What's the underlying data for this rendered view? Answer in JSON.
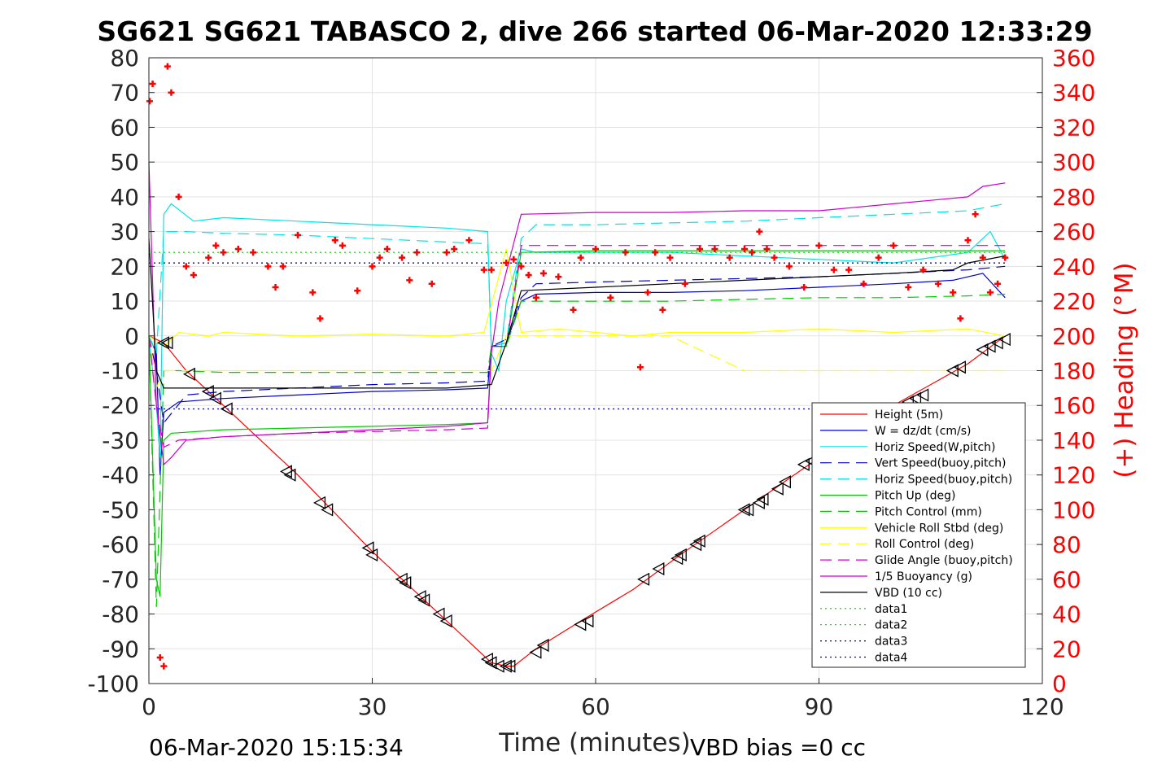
{
  "chart_data": {
    "type": "line",
    "title": "SG621 SG621 TABASCO 2, dive 266 started 06-Mar-2020 12:33:29",
    "xlabel": "Time (minutes)",
    "ylabel_right": "(+) Heading (°M)",
    "xlim": [
      0,
      120
    ],
    "ylim_left": [
      -100,
      80
    ],
    "ylim_right": [
      0,
      360
    ],
    "x_ticks": [
      "0",
      "30",
      "60",
      "90",
      "120"
    ],
    "y_ticks_left": [
      "80",
      "70",
      "60",
      "50",
      "40",
      "30",
      "20",
      "10",
      "0",
      "-10",
      "-20",
      "-30",
      "-40",
      "-50",
      "-60",
      "-70",
      "-80",
      "-90",
      "-100"
    ],
    "y_ticks_right": [
      "360",
      "340",
      "320",
      "300",
      "280",
      "260",
      "240",
      "220",
      "200",
      "180",
      "160",
      "140",
      "120",
      "100",
      "80",
      "60",
      "40",
      "20",
      "0"
    ],
    "grid": true,
    "legend_position": "bottom-right",
    "footer_left": "06-Mar-2020 15:15:34",
    "footer_right": "VBD bias =0 cc",
    "legend": [
      {
        "label": "Height (5m)",
        "color": "#ff0000",
        "dash": "solid"
      },
      {
        "label": "W = dz/dt (cm/s)",
        "color": "#0000cc",
        "dash": "solid"
      },
      {
        "label": "Horiz Speed(W,pitch)",
        "color": "#00e5e5",
        "dash": "solid"
      },
      {
        "label": "Vert Speed(buoy,pitch)",
        "color": "#0000cc",
        "dash": "dashed"
      },
      {
        "label": "Horiz Speed(buoy,pitch)",
        "color": "#00e5e5",
        "dash": "dashed"
      },
      {
        "label": "Pitch Up (deg)",
        "color": "#00cc00",
        "dash": "solid"
      },
      {
        "label": "Pitch Control (mm)",
        "color": "#00cc00",
        "dash": "dashed"
      },
      {
        "label": "Vehicle Roll Stbd (deg)",
        "color": "#ffff00",
        "dash": "solid"
      },
      {
        "label": "Roll Control (deg)",
        "color": "#ffff00",
        "dash": "dashed"
      },
      {
        "label": "Glide Angle (buoy,pitch)",
        "color": "#cc00cc",
        "dash": "dashed"
      },
      {
        "label": "1/5 Buoyancy (g)",
        "color": "#cc00cc",
        "dash": "solid"
      },
      {
        "label": "VBD (10 cc)",
        "color": "#000000",
        "dash": "solid"
      },
      {
        "label": "data1",
        "color": "#00cc00",
        "dash": "dotted"
      },
      {
        "label": "data2",
        "color": "#00cc00",
        "dash": "dotted"
      },
      {
        "label": "data3",
        "color": "#000080",
        "dash": "dotted"
      },
      {
        "label": "data4",
        "color": "#0000cc",
        "dash": "dotted"
      }
    ],
    "series": [
      {
        "key": "height",
        "x": [
          0,
          2,
          5,
          10,
          20,
          30,
          40,
          46,
          48,
          49,
          52,
          58,
          65,
          72,
          80,
          88,
          95,
          100,
          105,
          110,
          115
        ],
        "y": [
          0,
          -2,
          -10,
          -20,
          -40,
          -62,
          -82,
          -94,
          -95,
          -95,
          -90,
          -82,
          -73,
          -62,
          -50,
          -38,
          -28,
          -20,
          -14,
          -8,
          0
        ]
      },
      {
        "key": "w",
        "x": [
          0,
          1,
          1.5,
          2,
          4,
          10,
          20,
          30,
          40,
          45.5,
          46,
          48,
          50,
          52,
          60,
          70,
          80,
          90,
          100,
          108,
          112,
          115
        ],
        "y": [
          0,
          -5,
          -40,
          -22,
          -19,
          -18,
          -17,
          -16,
          -15.5,
          -15,
          -3,
          -2,
          10,
          12,
          12.5,
          12.5,
          13,
          14,
          15,
          16,
          18,
          11
        ]
      },
      {
        "key": "horiz_w",
        "x": [
          0,
          1,
          1.5,
          2,
          3,
          6,
          10,
          20,
          30,
          40,
          45.5,
          46,
          47,
          48,
          50,
          52,
          60,
          70,
          80,
          90,
          100,
          110,
          113,
          115
        ],
        "y": [
          0,
          -20,
          -35,
          35,
          38,
          33,
          34,
          33,
          32,
          31,
          30,
          -5,
          -10,
          10,
          25,
          24,
          24,
          24,
          23,
          22,
          21,
          24,
          30,
          22
        ]
      },
      {
        "key": "vert_buoy",
        "x": [
          0,
          1,
          2,
          5,
          10,
          20,
          30,
          40,
          45.5,
          46,
          48,
          50,
          52,
          60,
          70,
          80,
          90,
          100,
          110,
          115
        ],
        "y": [
          0,
          -10,
          -25,
          -17,
          -16,
          -15,
          -14,
          -13.5,
          -13,
          -3,
          -1,
          11,
          15,
          15.5,
          16,
          16.5,
          17,
          18,
          19,
          20
        ]
      },
      {
        "key": "horiz_buoy",
        "x": [
          0,
          1,
          2,
          5,
          10,
          20,
          30,
          40,
          45.5,
          46,
          48,
          50,
          52,
          60,
          70,
          80,
          90,
          100,
          110,
          115
        ],
        "y": [
          0,
          -5,
          30,
          30,
          29.5,
          29,
          28,
          27,
          26.5,
          -3,
          -2,
          28,
          32,
          32,
          32.5,
          33,
          34,
          35,
          36,
          38
        ]
      },
      {
        "key": "pitch_up",
        "x": [
          0,
          1,
          1.5,
          2,
          3,
          10,
          20,
          30,
          40,
          45.5,
          46,
          48,
          50,
          60,
          70,
          80,
          90,
          100,
          110,
          115
        ],
        "y": [
          0,
          -70,
          -75,
          -30,
          -28,
          -27,
          -26.5,
          -26,
          -25.5,
          -25,
          -3,
          -3,
          24,
          24.5,
          24.5,
          24.5,
          24.5,
          24.5,
          24.5,
          24.5
        ]
      },
      {
        "key": "pitch_ctl",
        "x": [
          0,
          1,
          2,
          4,
          10,
          20,
          30,
          40,
          45.5,
          46,
          48,
          50,
          60,
          70,
          80,
          90,
          100,
          110,
          115
        ],
        "y": [
          0,
          -78,
          -10,
          -10,
          -10.5,
          -10.5,
          -10.5,
          -10.5,
          -10.5,
          -3,
          -3,
          10,
          10,
          10,
          10.5,
          11,
          11,
          11.5,
          12
        ]
      },
      {
        "key": "roll",
        "x": [
          0,
          2,
          4,
          8,
          10,
          20,
          30,
          40,
          45,
          48,
          50,
          55,
          60,
          65,
          70,
          80,
          90,
          100,
          110,
          115
        ],
        "y": [
          0,
          -3,
          1,
          0,
          1,
          0,
          0.5,
          0,
          1,
          25,
          1,
          2,
          1,
          0,
          1,
          1,
          2,
          1,
          2,
          0
        ]
      },
      {
        "key": "roll_ctl",
        "x": [
          0,
          1,
          2,
          10,
          20,
          30,
          40,
          46,
          48,
          50,
          60,
          70,
          80,
          90,
          100,
          110,
          115
        ],
        "y": [
          0,
          -15,
          -10,
          -10,
          -10,
          -10,
          -10,
          -10,
          0,
          0,
          0,
          0,
          -10,
          -10,
          -10,
          -10,
          -10
        ]
      },
      {
        "key": "glide",
        "x": [
          0,
          1,
          2,
          4,
          10,
          20,
          30,
          40,
          45.5,
          46,
          48,
          50,
          60,
          70,
          80,
          90,
          100,
          110,
          115
        ],
        "y": [
          0,
          -20,
          -32,
          -30,
          -29,
          -28,
          -27.5,
          -27,
          -26.5,
          -3,
          -3,
          26,
          26,
          26,
          26,
          26,
          26,
          26,
          26
        ]
      },
      {
        "key": "buoyancy",
        "x": [
          0,
          1,
          2,
          3,
          5,
          10,
          20,
          30,
          40,
          45.5,
          46,
          47,
          50,
          60,
          70,
          80,
          90,
          95,
          100,
          105,
          110,
          112,
          115
        ],
        "y": [
          50,
          -20,
          -37,
          -35,
          -30,
          -29,
          -28,
          -27,
          -26,
          -25,
          -5,
          10,
          35,
          35.5,
          35.5,
          36,
          36,
          37,
          38,
          39,
          40,
          43,
          44
        ]
      },
      {
        "key": "vbd",
        "x": [
          0,
          1,
          2,
          5,
          10,
          20,
          30,
          40,
          46,
          48,
          50,
          60,
          70,
          80,
          90,
          100,
          108,
          110,
          115
        ],
        "y": [
          28,
          -10,
          -15,
          -15,
          -15,
          -15,
          -15,
          -15,
          -14,
          -2,
          13,
          14,
          15,
          16,
          17,
          18,
          19,
          21,
          23
        ]
      },
      {
        "key": "data1",
        "x": [
          0,
          115
        ],
        "y": [
          24,
          24
        ]
      },
      {
        "key": "data2",
        "x": [
          0,
          115
        ],
        "y": [
          21,
          21
        ]
      },
      {
        "key": "data3",
        "x": [
          0,
          115
        ],
        "y": [
          21,
          21
        ]
      },
      {
        "key": "data4",
        "x": [
          0,
          115
        ],
        "y": [
          -21,
          -21
        ]
      }
    ],
    "heading": {
      "axis": "right",
      "color": "#ff0000",
      "x": [
        0.1,
        0.5,
        1.5,
        2,
        2.5,
        3,
        4,
        5,
        6,
        8,
        9,
        10,
        12,
        14,
        16,
        17,
        18,
        20,
        22,
        23,
        25,
        26,
        28,
        30,
        31,
        32,
        34,
        35,
        36,
        38,
        40,
        41,
        43,
        45,
        46,
        48,
        49,
        50,
        51,
        52,
        53,
        55,
        57,
        58,
        60,
        62,
        64,
        66,
        67,
        68,
        69,
        70,
        72,
        74,
        76,
        78,
        80,
        81,
        82,
        83,
        84,
        86,
        88,
        90,
        92,
        94,
        96,
        98,
        100,
        102,
        104,
        106,
        108,
        109,
        110,
        111,
        112,
        113,
        114,
        115
      ],
      "y": [
        335,
        345,
        15,
        10,
        355,
        340,
        280,
        240,
        235,
        245,
        252,
        248,
        250,
        248,
        240,
        228,
        240,
        258,
        225,
        210,
        255,
        252,
        226,
        240,
        245,
        250,
        245,
        232,
        248,
        230,
        248,
        250,
        255,
        238,
        238,
        242,
        244,
        240,
        235,
        222,
        236,
        234,
        215,
        245,
        250,
        222,
        248,
        182,
        225,
        248,
        215,
        245,
        230,
        250,
        250,
        245,
        250,
        248,
        260,
        250,
        245,
        240,
        228,
        252,
        238,
        238,
        230,
        245,
        252,
        228,
        238,
        230,
        225,
        210,
        255,
        270,
        245,
        225,
        230,
        245
      ]
    },
    "markers": {
      "color": "#000000",
      "x": [
        2,
        2.5,
        5.5,
        8,
        9,
        10.5,
        18.5,
        19,
        23,
        24,
        29.5,
        30,
        34,
        34.5,
        36.5,
        37,
        39,
        40,
        45.5,
        46,
        47,
        48,
        48.5,
        52,
        53,
        58,
        59,
        66.5,
        68.5,
        71,
        71.5,
        73.5,
        74,
        80,
        80.5,
        82,
        82.5,
        84.5,
        85.5,
        88,
        89,
        93,
        95,
        102,
        103,
        104,
        108,
        109,
        112,
        113,
        114,
        115
      ],
      "y": [
        -2,
        -2,
        -11,
        -16,
        -18,
        -21,
        -39,
        -40,
        -48,
        -50,
        -61,
        -63,
        -70,
        -71,
        -75,
        -76,
        -80,
        -82,
        -93,
        -94,
        -95,
        -95,
        -95,
        -91,
        -89,
        -83,
        -82,
        -70,
        -67,
        -64,
        -63,
        -60,
        -59,
        -50,
        -50,
        -48,
        -47,
        -44,
        -42,
        -37,
        -36,
        -30,
        -27,
        -19,
        -18,
        -17,
        -10,
        -9,
        -4,
        -3,
        -2,
        -1
      ]
    }
  }
}
